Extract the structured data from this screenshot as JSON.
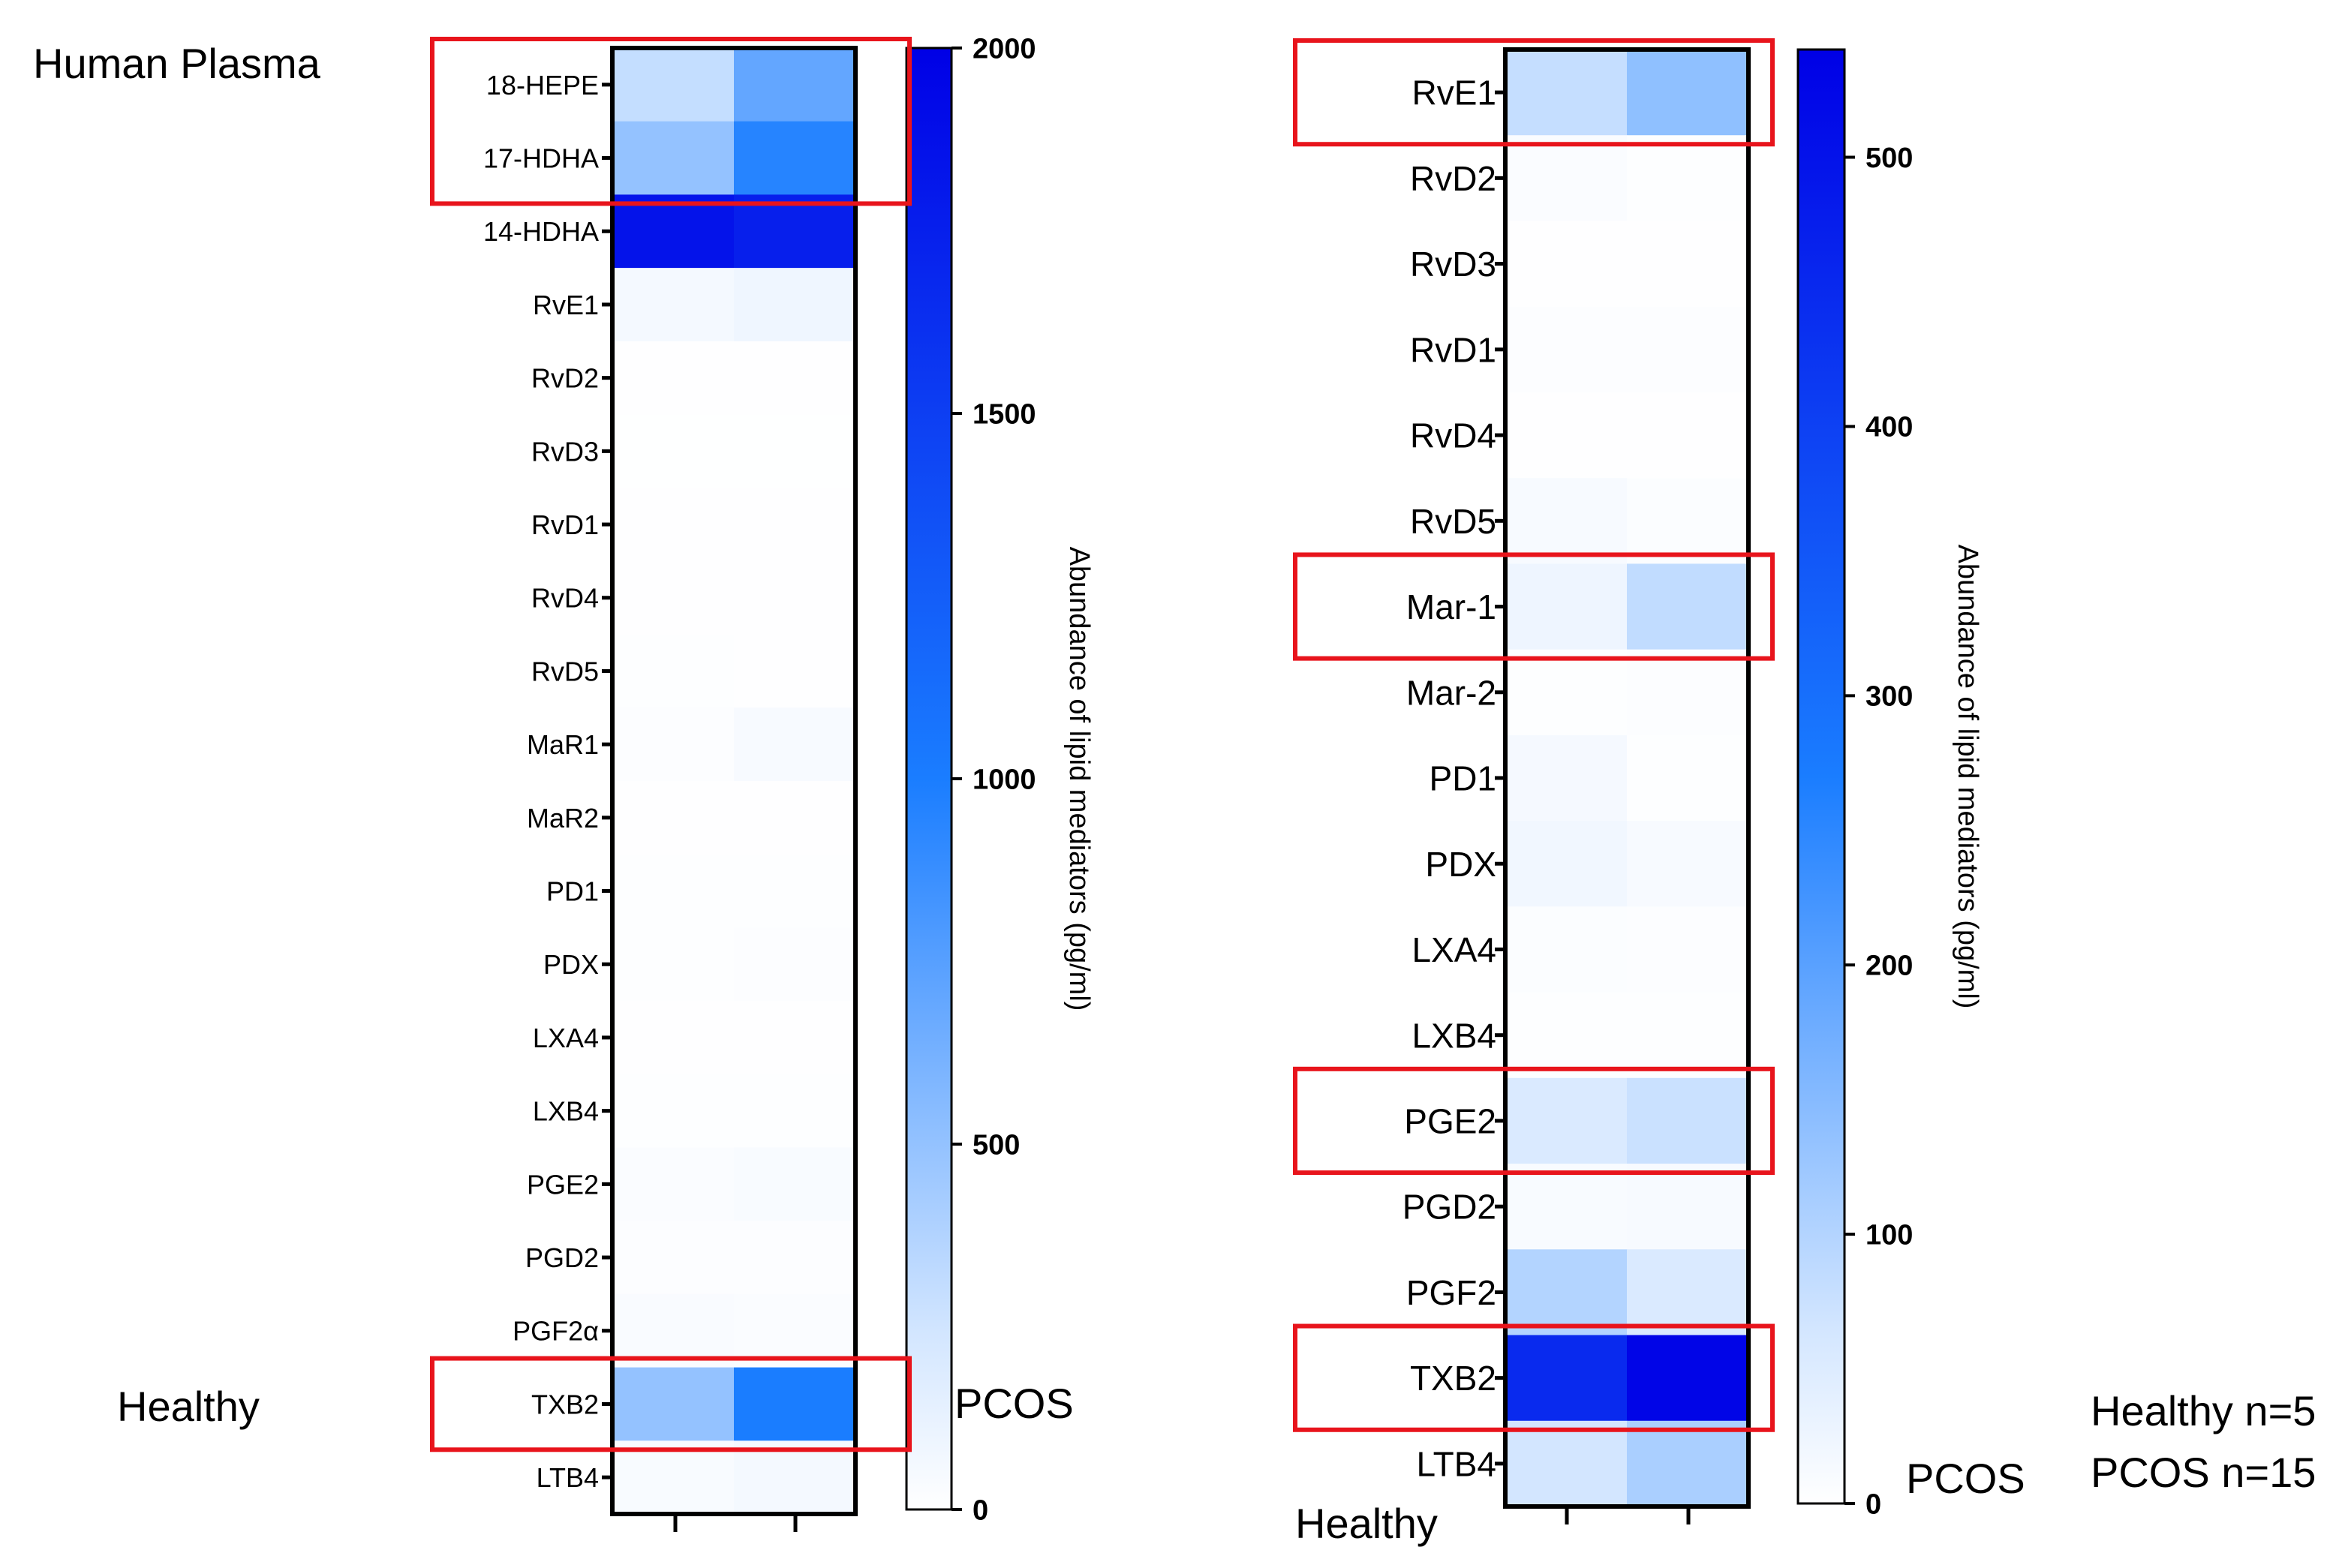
{
  "figure": {
    "title_left": "Human Plasma",
    "healthy_left": "Healthy",
    "pcos_left": "PCOS",
    "healthy_right": "Healthy",
    "pcos_right": "PCOS",
    "note_healthy": "Healthy n=5",
    "note_pcos": "PCOS n=15",
    "highlight_color": "#e8141c",
    "colormap": {
      "low": "#ffffff",
      "mid": "#1a7dff",
      "high": "#0000e6"
    }
  },
  "chart_data": [
    {
      "type": "heatmap",
      "title": "Human Plasma",
      "columns": [
        "Healthy",
        "PCOS"
      ],
      "rows": [
        "18-HEPE",
        "17-HDHA",
        "14-HDHA",
        "RvE1",
        "RvD2",
        "RvD3",
        "RvD1",
        "RvD4",
        "RvD5",
        "MaR1",
        "MaR2",
        "PD1",
        "PDX",
        "LXA4",
        "LXB4",
        "PGE2",
        "PGD2",
        "PGF2α",
        "TXB2",
        "LTB4"
      ],
      "values": [
        [
          300,
          700
        ],
        [
          500,
          950
        ],
        [
          1850,
          1750
        ],
        [
          60,
          90
        ],
        [
          8,
          5
        ],
        [
          4,
          4
        ],
        [
          5,
          6
        ],
        [
          6,
          5
        ],
        [
          10,
          8
        ],
        [
          15,
          45
        ],
        [
          5,
          5
        ],
        [
          10,
          12
        ],
        [
          12,
          15
        ],
        [
          8,
          8
        ],
        [
          10,
          10
        ],
        [
          30,
          40
        ],
        [
          15,
          18
        ],
        [
          35,
          30
        ],
        [
          500,
          1000
        ],
        [
          40,
          60
        ]
      ],
      "colorbar": {
        "label": "Abundance of lipid mediators (pg/ml)",
        "min": 0,
        "max": 2000,
        "ticks": [
          0,
          500,
          1000,
          1500,
          2000
        ]
      },
      "highlighted_rows": [
        "18-HEPE",
        "17-HDHA",
        "TXB2"
      ]
    },
    {
      "type": "heatmap",
      "title": "",
      "columns": [
        "Healthy",
        "PCOS"
      ],
      "rows": [
        "RvE1",
        "RvD2",
        "RvD3",
        "RvD1",
        "RvD4",
        "RvD5",
        "Mar-1",
        "Mar-2",
        "PD1",
        "PDX",
        "LXA4",
        "LXB4",
        "PGE2",
        "PGD2",
        "PGF2",
        "TXB2",
        "LTB4"
      ],
      "values": [
        [
          80,
          140
        ],
        [
          8,
          3
        ],
        [
          2,
          2
        ],
        [
          5,
          4
        ],
        [
          2,
          2
        ],
        [
          12,
          6
        ],
        [
          25,
          85
        ],
        [
          3,
          4
        ],
        [
          15,
          3
        ],
        [
          20,
          12
        ],
        [
          6,
          4
        ],
        [
          3,
          3
        ],
        [
          55,
          75
        ],
        [
          10,
          12
        ],
        [
          100,
          55
        ],
        [
          450,
          530
        ],
        [
          65,
          110
        ]
      ],
      "colorbar": {
        "label": "Abundance of lipid mediators (pg/ml)",
        "min": 0,
        "max": 540,
        "ticks": [
          0,
          100,
          200,
          300,
          400,
          500
        ]
      },
      "highlighted_rows": [
        "RvE1",
        "Mar-1",
        "PGE2",
        "TXB2"
      ]
    }
  ]
}
